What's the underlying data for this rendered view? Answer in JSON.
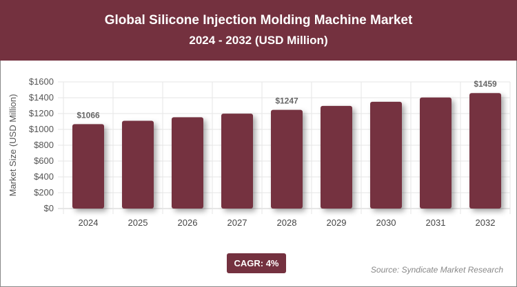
{
  "header": {
    "title": "Global Silicone Injection Molding Machine Market",
    "subtitle": "2024 - 2032 (USD Million)"
  },
  "chart_data": {
    "type": "bar",
    "title": "Global Silicone Injection Molding Machine Market",
    "subtitle": "2024 - 2032 (USD Million)",
    "ylabel": "Market Size (USD Million)",
    "xlabel": "",
    "categories": [
      "2024",
      "2025",
      "2026",
      "2027",
      "2028",
      "2029",
      "2030",
      "2031",
      "2032"
    ],
    "values": [
      1066,
      1109,
      1153,
      1199,
      1247,
      1297,
      1349,
      1403,
      1459
    ],
    "data_labels": {
      "0": "$1066",
      "4": "$1247",
      "8": "$1459"
    },
    "ylim": [
      0,
      1600
    ],
    "yticks": [
      0,
      200,
      400,
      600,
      800,
      1000,
      1200,
      1400,
      1600
    ],
    "ytick_labels": [
      "$0",
      "$200",
      "$400",
      "$600",
      "$800",
      "$1000",
      "$1200",
      "$1400",
      "$1600"
    ],
    "grid": true,
    "bar_color": "#74313f"
  },
  "footer": {
    "cagr": "CAGR: 4%",
    "source": "Source: Syndicate Market Research"
  }
}
